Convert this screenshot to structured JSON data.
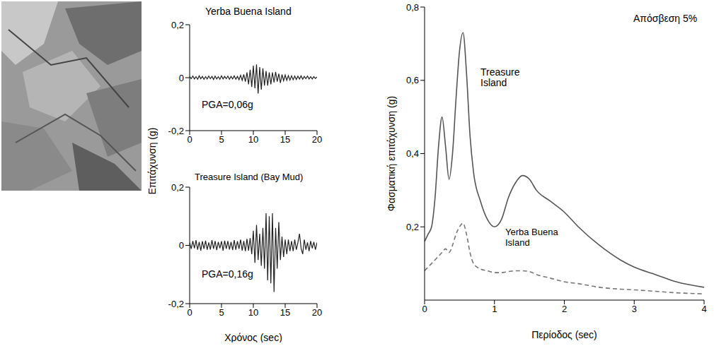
{
  "chart_data": [
    {
      "type": "line",
      "title": "Yerba Buena Island",
      "ylabel": "Επιτάχυνση (g)",
      "annotations": [
        "PGA=0,06g"
      ],
      "grid": false,
      "color": "#222222",
      "line_style": "solid",
      "xlim": [
        0,
        20
      ],
      "xticks": [
        0,
        5,
        10,
        15,
        20
      ],
      "ylim": [
        -0.2,
        0.2
      ],
      "yticks": [
        {
          "value": -0.2,
          "label": "-0,2"
        },
        0,
        {
          "value": 0.2,
          "label": "0,2"
        }
      ],
      "x": [
        0,
        0.25,
        0.5,
        0.75,
        1,
        1.25,
        1.5,
        1.75,
        2,
        2.25,
        2.5,
        2.75,
        3,
        3.25,
        3.5,
        3.75,
        4,
        4.25,
        4.5,
        4.75,
        5,
        5.25,
        5.5,
        5.75,
        6,
        6.25,
        6.5,
        6.75,
        7,
        7.25,
        7.5,
        7.75,
        8,
        8.25,
        8.5,
        8.75,
        9,
        9.25,
        9.5,
        9.75,
        10,
        10.25,
        10.5,
        10.75,
        11,
        11.25,
        11.5,
        11.75,
        12,
        12.25,
        12.5,
        12.75,
        13,
        13.25,
        13.5,
        13.75,
        14,
        14.25,
        14.5,
        14.75,
        15,
        15.25,
        15.5,
        15.75,
        16,
        16.25,
        16.5,
        16.75,
        17,
        17.25,
        17.5,
        17.75,
        18,
        18.25,
        18.5,
        18.75,
        19,
        19.25,
        19.5,
        19.75,
        20
      ],
      "values": [
        0.005,
        -0.004,
        0.006,
        -0.005,
        0.004,
        -0.006,
        0.007,
        -0.004,
        0.005,
        -0.006,
        0.004,
        -0.005,
        0.006,
        -0.004,
        0.005,
        -0.007,
        0.006,
        -0.005,
        0.004,
        -0.006,
        0.007,
        -0.005,
        0.005,
        -0.004,
        0.006,
        -0.006,
        0.005,
        -0.005,
        0.007,
        -0.006,
        0.005,
        -0.008,
        0.009,
        -0.01,
        0.012,
        -0.015,
        0.02,
        -0.025,
        0.03,
        -0.035,
        0.045,
        -0.04,
        0.05,
        -0.06,
        0.04,
        -0.045,
        0.035,
        -0.03,
        0.025,
        -0.03,
        0.02,
        -0.025,
        0.02,
        -0.018,
        0.022,
        -0.015,
        0.015,
        -0.02,
        0.012,
        -0.012,
        0.01,
        -0.01,
        0.008,
        -0.009,
        0.007,
        -0.008,
        0.006,
        -0.007,
        0.006,
        -0.005,
        0.007,
        -0.006,
        0.005,
        -0.004,
        0.006,
        -0.005,
        0.004,
        -0.005,
        0.004,
        -0.003,
        0.003
      ]
    },
    {
      "type": "line",
      "title": "Treasure Island (Bay Mud)",
      "xlabel": "Χρόνος (sec)",
      "annotations": [
        "PGA=0,16g"
      ],
      "grid": false,
      "color": "#222222",
      "line_style": "solid",
      "xlim": [
        0,
        20
      ],
      "xticks": [
        0,
        5,
        10,
        15,
        20
      ],
      "ylim": [
        -0.2,
        0.2
      ],
      "yticks": [
        {
          "value": -0.2,
          "label": "-0,2"
        },
        0,
        {
          "value": 0.2,
          "label": "0,2"
        }
      ],
      "x": [
        0,
        0.25,
        0.5,
        0.75,
        1,
        1.25,
        1.5,
        1.75,
        2,
        2.25,
        2.5,
        2.75,
        3,
        3.25,
        3.5,
        3.75,
        4,
        4.25,
        4.5,
        4.75,
        5,
        5.25,
        5.5,
        5.75,
        6,
        6.25,
        6.5,
        6.75,
        7,
        7.25,
        7.5,
        7.75,
        8,
        8.25,
        8.5,
        8.75,
        9,
        9.25,
        9.5,
        9.75,
        10,
        10.25,
        10.5,
        10.75,
        11,
        11.25,
        11.5,
        11.75,
        12,
        12.25,
        12.5,
        12.75,
        13,
        13.25,
        13.5,
        13.75,
        14,
        14.25,
        14.5,
        14.75,
        15,
        15.25,
        15.5,
        15.75,
        16,
        16.25,
        16.5,
        16.75,
        17,
        17.25,
        17.5,
        17.75,
        18,
        18.25,
        18.5,
        18.75,
        19,
        19.25,
        19.5,
        19.75,
        20
      ],
      "values": [
        0.01,
        -0.012,
        0.015,
        -0.01,
        0.018,
        -0.015,
        0.012,
        -0.018,
        0.014,
        -0.012,
        0.016,
        -0.015,
        0.01,
        -0.014,
        0.018,
        -0.012,
        0.015,
        -0.016,
        0.012,
        -0.01,
        0.014,
        -0.018,
        0.016,
        -0.012,
        0.015,
        -0.014,
        0.012,
        -0.016,
        0.018,
        -0.015,
        0.014,
        -0.012,
        0.02,
        -0.018,
        0.015,
        -0.02,
        0.022,
        -0.018,
        0.025,
        -0.03,
        0.05,
        -0.06,
        0.07,
        -0.05,
        0.04,
        -0.07,
        0.06,
        -0.08,
        0.11,
        -0.12,
        0.1,
        -0.13,
        0.11,
        -0.16,
        0.06,
        -0.08,
        0.08,
        -0.05,
        0.03,
        -0.04,
        0.02,
        -0.03,
        0.02,
        -0.02,
        0.015,
        -0.02,
        0.02,
        -0.015,
        0.01,
        0.04,
        -0.01,
        -0.03,
        0.02,
        -0.015,
        0.01,
        -0.02,
        0.015,
        -0.01,
        0.012,
        -0.015,
        0.01
      ]
    },
    {
      "type": "line",
      "xlabel": "Περίοδος (sec)",
      "ylabel": "Φασματική επιτάχυνση (g)",
      "annotations": [
        "Απόσβεση 5%"
      ],
      "grid": false,
      "xlim": [
        0,
        4
      ],
      "xticks": [
        0,
        1,
        2,
        3,
        4
      ],
      "ylim": [
        0,
        0.8
      ],
      "yticks": [
        {
          "value": 0.2,
          "label": "0,2"
        },
        {
          "value": 0.4,
          "label": "0,4"
        },
        {
          "value": 0.6,
          "label": "0,6"
        },
        {
          "value": 0.8,
          "label": "0,8"
        }
      ],
      "x": [
        0,
        0.05,
        0.1,
        0.15,
        0.2,
        0.25,
        0.3,
        0.35,
        0.4,
        0.45,
        0.5,
        0.55,
        0.6,
        0.65,
        0.7,
        0.8,
        0.9,
        1.0,
        1.1,
        1.2,
        1.3,
        1.4,
        1.5,
        1.6,
        1.8,
        2.0,
        2.2,
        2.5,
        2.8,
        3.0,
        3.3,
        3.6,
        4.0
      ],
      "series": [
        {
          "name": "Treasure Island",
          "color": "#555555",
          "line_style": "solid",
          "values": [
            0.16,
            0.18,
            0.2,
            0.28,
            0.42,
            0.5,
            0.42,
            0.33,
            0.4,
            0.55,
            0.68,
            0.73,
            0.62,
            0.45,
            0.35,
            0.27,
            0.22,
            0.2,
            0.22,
            0.28,
            0.32,
            0.34,
            0.33,
            0.3,
            0.27,
            0.24,
            0.2,
            0.15,
            0.11,
            0.09,
            0.07,
            0.05,
            0.035
          ]
        },
        {
          "name": "Yerba Buena Island",
          "color": "#777777",
          "line_style": "dashed",
          "values": [
            0.08,
            0.09,
            0.1,
            0.11,
            0.12,
            0.13,
            0.14,
            0.13,
            0.15,
            0.18,
            0.2,
            0.21,
            0.18,
            0.13,
            0.1,
            0.085,
            0.08,
            0.075,
            0.075,
            0.078,
            0.08,
            0.08,
            0.078,
            0.07,
            0.06,
            0.05,
            0.045,
            0.035,
            0.03,
            0.028,
            0.024,
            0.02,
            0.017
          ]
        }
      ]
    }
  ]
}
